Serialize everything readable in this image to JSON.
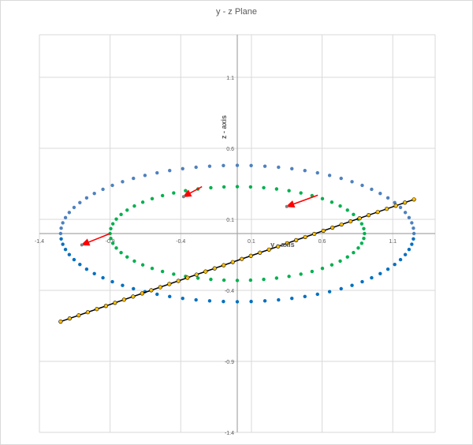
{
  "chart_data": {
    "type": "scatter",
    "title": "y - z Plane",
    "xlabel": "y - axis",
    "ylabel": "z - axis",
    "xlim": [
      -1.4,
      1.4
    ],
    "ylim": [
      -1.4,
      1.4
    ],
    "x_ticks": [
      "-1.4",
      "-0.9",
      "-0.4",
      "0.1",
      "0.6",
      "1.1"
    ],
    "y_ticks": [
      "1.1",
      "0.6",
      "0.1",
      "-0.4",
      "-0.9",
      "-1.4"
    ],
    "grid": true,
    "legend": "none",
    "series": [
      {
        "kind": "ellipse",
        "center": [
          0,
          0
        ],
        "semi_axes": [
          1.25,
          0.48
        ],
        "count": 80,
        "colors": {
          "upper": "#4f81bd",
          "lower": "#0070c0"
        },
        "marker": "circle"
      },
      {
        "kind": "ellipse",
        "center": [
          0,
          0
        ],
        "semi_axes": [
          0.9,
          0.33
        ],
        "count": 60,
        "colors": {
          "upper": "#00b050",
          "lower": "#00b050"
        },
        "marker": "circle"
      },
      {
        "kind": "line",
        "from": [
          -1.25,
          -0.62
        ],
        "to": [
          1.25,
          0.24
        ],
        "count": 40,
        "color": "#ffc000",
        "stroke": "#000000",
        "marker": "circle"
      }
    ],
    "arrows": [
      {
        "from": [
          -0.25,
          0.33
        ],
        "to": [
          -0.38,
          0.26
        ],
        "color": "#ff0000"
      },
      {
        "from": [
          0.57,
          0.27
        ],
        "to": [
          0.35,
          0.19
        ],
        "color": "#ff0000"
      },
      {
        "from": [
          -0.9,
          0.0
        ],
        "to": [
          -1.1,
          -0.08
        ],
        "color": "#ff0000"
      }
    ]
  }
}
